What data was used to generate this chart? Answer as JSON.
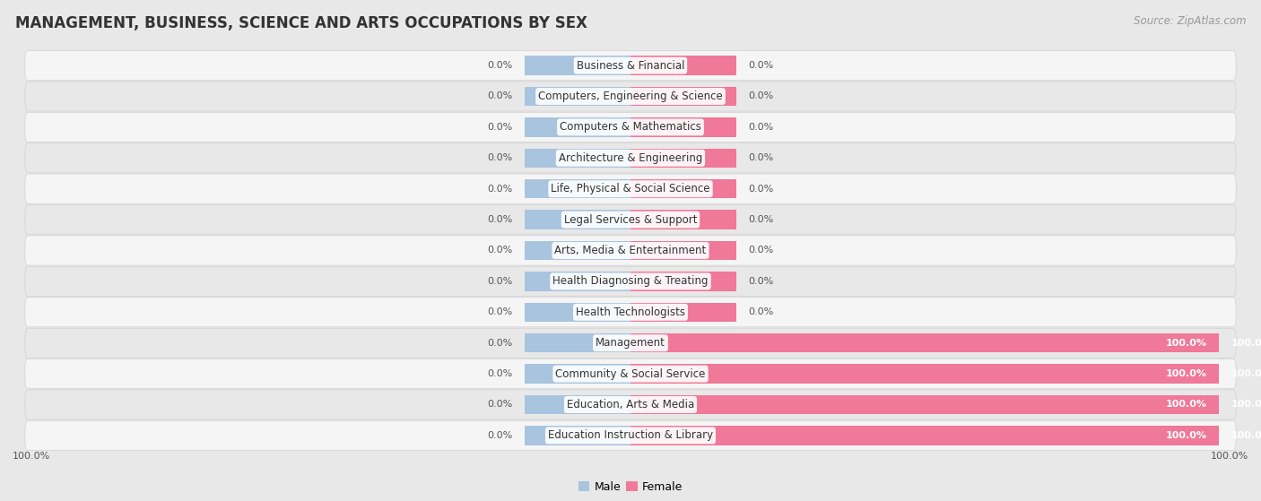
{
  "title": "MANAGEMENT, BUSINESS, SCIENCE AND ARTS OCCUPATIONS BY SEX",
  "source": "Source: ZipAtlas.com",
  "categories": [
    "Business & Financial",
    "Computers, Engineering & Science",
    "Computers & Mathematics",
    "Architecture & Engineering",
    "Life, Physical & Social Science",
    "Legal Services & Support",
    "Arts, Media & Entertainment",
    "Health Diagnosing & Treating",
    "Health Technologists",
    "Management",
    "Community & Social Service",
    "Education, Arts & Media",
    "Education Instruction & Library"
  ],
  "male_values": [
    0.0,
    0.0,
    0.0,
    0.0,
    0.0,
    0.0,
    0.0,
    0.0,
    0.0,
    0.0,
    0.0,
    0.0,
    0.0
  ],
  "female_values": [
    0.0,
    0.0,
    0.0,
    0.0,
    0.0,
    0.0,
    0.0,
    0.0,
    0.0,
    100.0,
    100.0,
    100.0,
    100.0
  ],
  "male_stub": 18,
  "female_stub": 18,
  "male_color": "#a8c4de",
  "female_color": "#f07898",
  "male_label": "Male",
  "female_label": "Female",
  "bg_color": "#e8e8e8",
  "row_color_even": "#f5f5f5",
  "row_color_odd": "#e8e8e8",
  "bar_height": 0.62,
  "xlim": 105,
  "title_fontsize": 12,
  "source_fontsize": 8.5,
  "cat_fontsize": 8.5,
  "val_fontsize": 8.0,
  "legend_fontsize": 9
}
